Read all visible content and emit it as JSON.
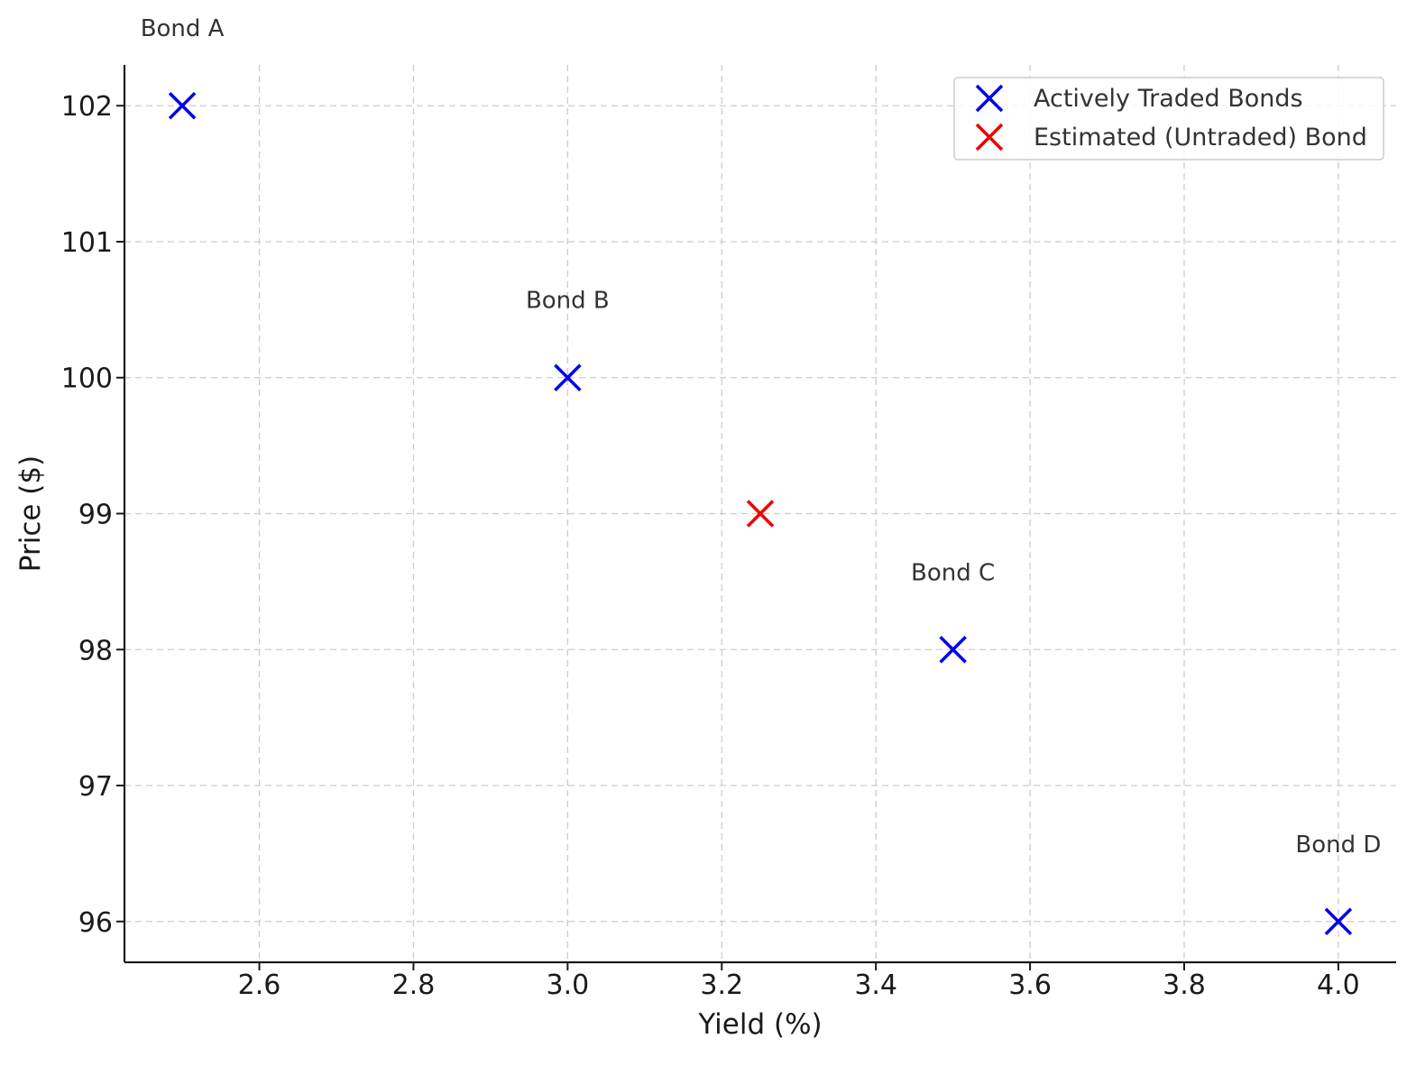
{
  "chart_data": {
    "type": "scatter",
    "xlabel": "Yield (%)",
    "ylabel": "Price ($)",
    "xlim": [
      2.425,
      4.075
    ],
    "ylim": [
      95.7,
      102.3
    ],
    "xticks": [
      "2.6",
      "2.8",
      "3.0",
      "3.2",
      "3.4",
      "3.6",
      "3.8",
      "4.0"
    ],
    "yticks": [
      "96",
      "97",
      "98",
      "99",
      "100",
      "101",
      "102"
    ],
    "grid": true,
    "legend_position": "top-right",
    "series": [
      {
        "name": "Actively Traded Bonds",
        "color": "#0000ee",
        "marker": "x",
        "points": [
          {
            "x": 2.5,
            "y": 102,
            "label": "Bond A"
          },
          {
            "x": 3.0,
            "y": 100,
            "label": "Bond B"
          },
          {
            "x": 3.5,
            "y": 98,
            "label": "Bond C"
          },
          {
            "x": 4.0,
            "y": 96,
            "label": "Bond D"
          }
        ]
      },
      {
        "name": "Estimated (Untraded) Bond",
        "color": "#ee0000",
        "marker": "x",
        "points": [
          {
            "x": 3.25,
            "y": 99
          }
        ]
      }
    ]
  }
}
